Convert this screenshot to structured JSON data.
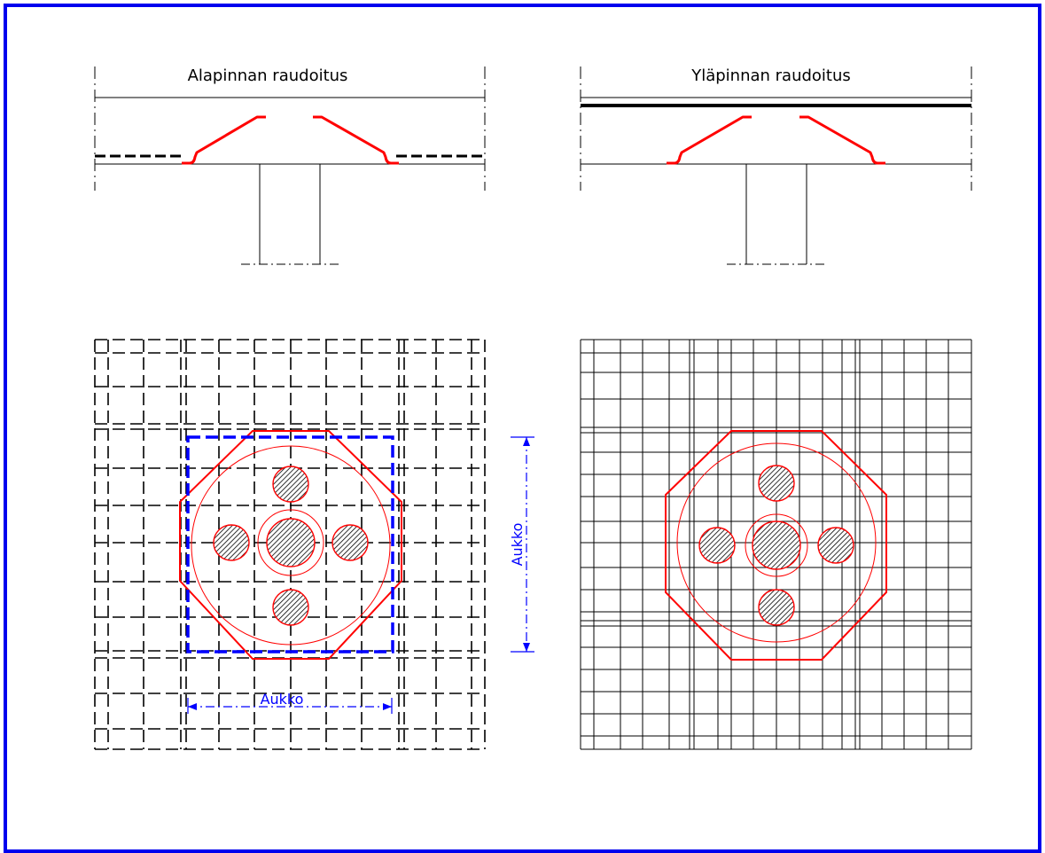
{
  "titles": {
    "bottom_reinforcement": "Alapinnan raudoitus",
    "top_reinforcement": "Yläpinnan raudoitus"
  },
  "dimensions": {
    "opening_horizontal": "Aukko",
    "opening_vertical": "Aukko"
  },
  "colors": {
    "frame": "#0000ee",
    "line": "#000000",
    "reinforcement": "#ff0000",
    "dimension": "#0000ff"
  }
}
